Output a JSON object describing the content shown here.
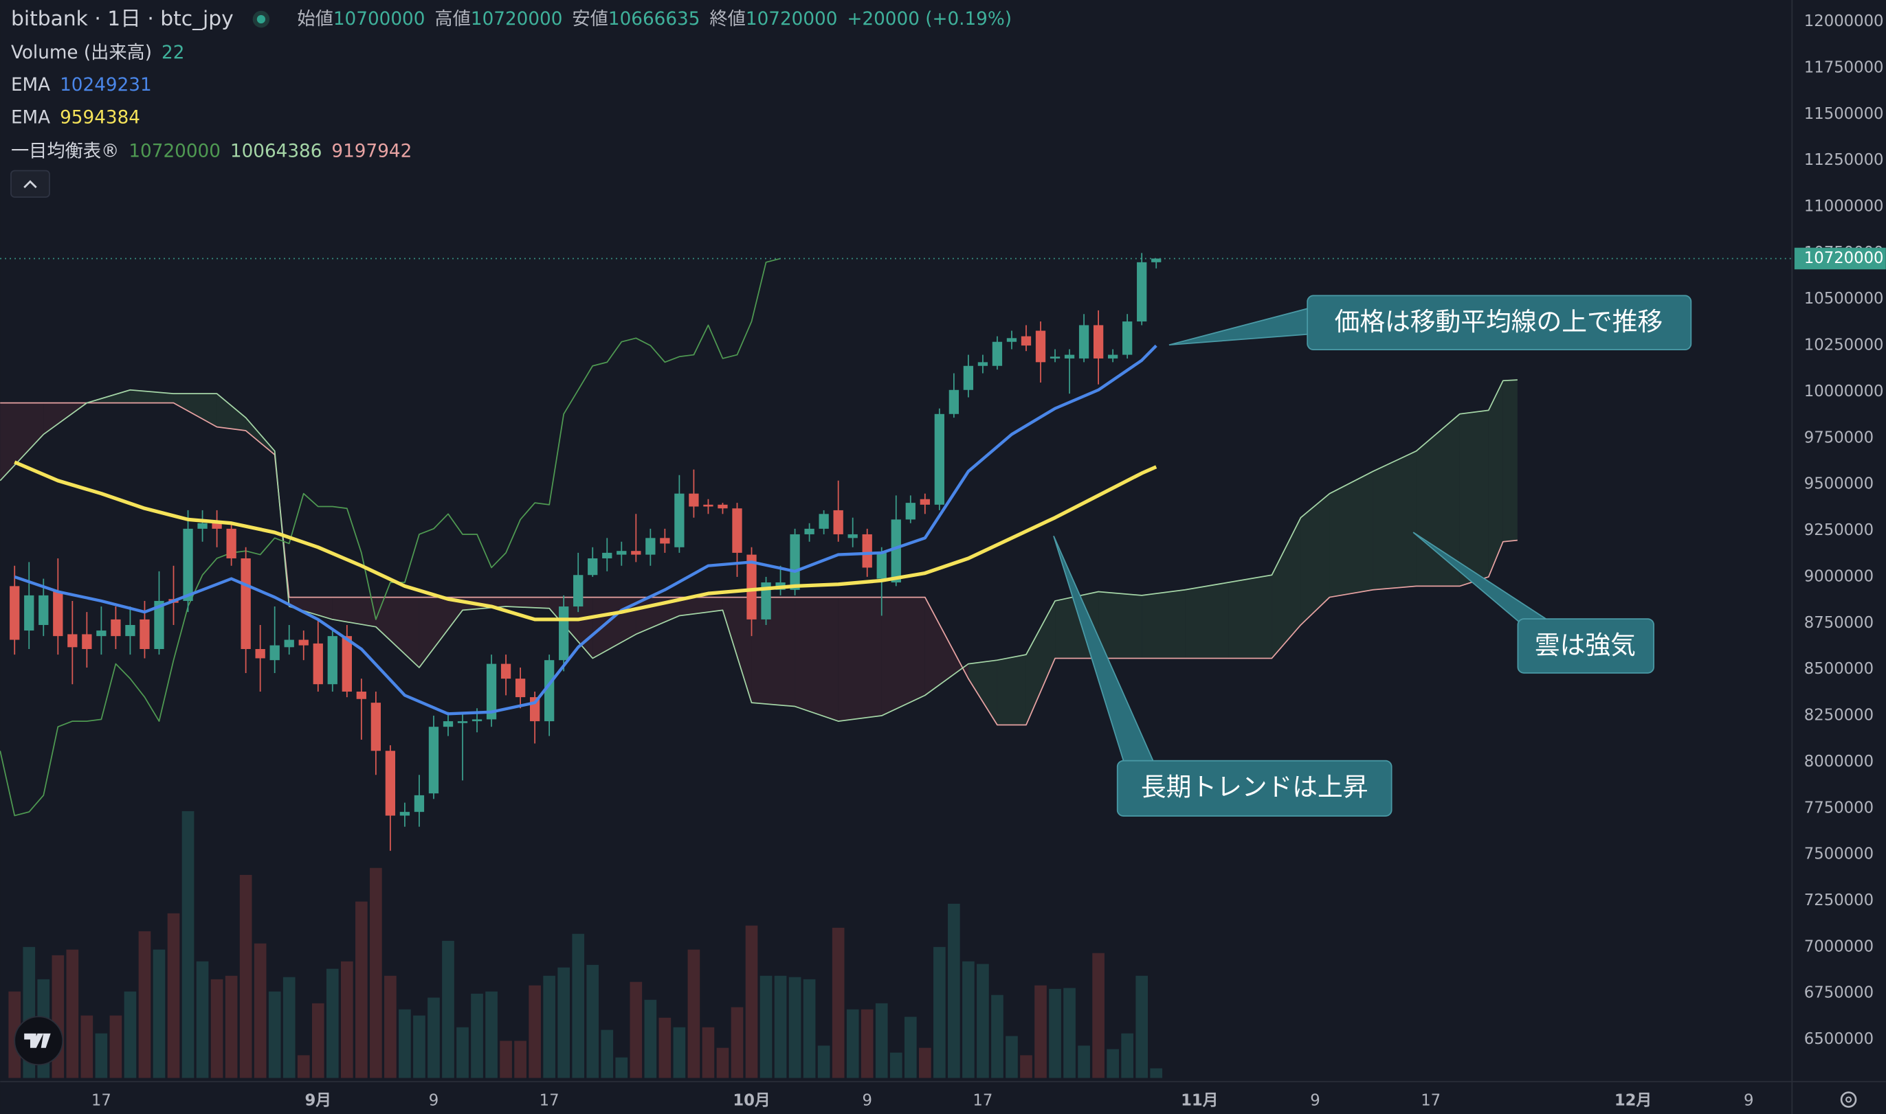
{
  "header": {
    "symbol": "bitbank · 1日 · btc_jpy",
    "open_label": "始値",
    "high_label": "高値",
    "low_label": "安値",
    "close_label": "終値",
    "change": "+20000 (+0.19%)"
  },
  "chart_data": {
    "type": "candlestick",
    "x": [
      "08-11",
      "08-12",
      "08-13",
      "08-14",
      "08-15",
      "08-16",
      "08-17",
      "08-18",
      "08-19",
      "08-20",
      "08-21",
      "08-22",
      "08-23",
      "08-24",
      "08-25",
      "08-26",
      "08-27",
      "08-28",
      "08-29",
      "08-30",
      "08-31",
      "09-01",
      "09-02",
      "09-03",
      "09-04",
      "09-05",
      "09-06",
      "09-07",
      "09-08",
      "09-09",
      "09-10",
      "09-11",
      "09-12",
      "09-13",
      "09-14",
      "09-15",
      "09-16",
      "09-17",
      "09-18",
      "09-19",
      "09-20",
      "09-21",
      "09-22",
      "09-23",
      "09-24",
      "09-25",
      "09-26",
      "09-27",
      "09-28",
      "09-29",
      "09-30",
      "10-01",
      "10-02",
      "10-03",
      "10-04",
      "10-05",
      "10-06",
      "10-07",
      "10-08",
      "10-09",
      "10-10",
      "10-11",
      "10-12",
      "10-13",
      "10-14",
      "10-15",
      "10-16",
      "10-17",
      "10-18",
      "10-19",
      "10-20",
      "10-21",
      "10-22",
      "10-23",
      "10-24",
      "10-25",
      "10-26",
      "10-27",
      "10-28",
      "10-29"
    ],
    "open": [
      8950000,
      8710000,
      8740000,
      8920000,
      8690000,
      8690000,
      8680000,
      8770000,
      8680000,
      8770000,
      8610000,
      8880000,
      8870000,
      9260000,
      9290000,
      9260000,
      9100000,
      8610000,
      8550000,
      8620000,
      8660000,
      8640000,
      8420000,
      8680000,
      8380000,
      8320000,
      8060000,
      7710000,
      7730000,
      7830000,
      8190000,
      8210000,
      8220000,
      8230000,
      8530000,
      8450000,
      8350000,
      8220000,
      8550000,
      8840000,
      9010000,
      9100000,
      9120000,
      9140000,
      9120000,
      9210000,
      9160000,
      9450000,
      9390000,
      9390000,
      9370000,
      9120000,
      8770000,
      8930000,
      8930000,
      9230000,
      9260000,
      9360000,
      9210000,
      9230000,
      8990000,
      8970000,
      9310000,
      9420000,
      9390000,
      9880000,
      10010000,
      10140000,
      10140000,
      10270000,
      10300000,
      10330000,
      10180000,
      10180000,
      10180000,
      10360000,
      10180000,
      10200000,
      10380000,
      10700000
    ],
    "high": [
      9060000,
      9080000,
      8990000,
      9100000,
      8870000,
      8810000,
      8840000,
      8840000,
      8840000,
      8870000,
      9030000,
      9060000,
      9360000,
      9360000,
      9360000,
      9290000,
      9160000,
      8740000,
      8840000,
      8740000,
      8710000,
      8770000,
      8710000,
      8740000,
      8450000,
      8380000,
      8090000,
      7780000,
      7930000,
      8250000,
      8270000,
      8270000,
      8290000,
      8580000,
      8580000,
      8510000,
      8380000,
      8580000,
      8900000,
      9130000,
      9160000,
      9210000,
      9190000,
      9340000,
      9260000,
      9260000,
      9550000,
      9580000,
      9420000,
      9400000,
      9400000,
      9160000,
      9000000,
      9060000,
      9260000,
      9290000,
      9360000,
      9520000,
      9320000,
      9260000,
      9160000,
      9440000,
      9440000,
      9450000,
      9910000,
      10100000,
      10200000,
      10200000,
      10300000,
      10330000,
      10360000,
      10380000,
      10230000,
      10230000,
      10420000,
      10440000,
      10230000,
      10420000,
      10750000,
      10720000
    ],
    "low": [
      8580000,
      8610000,
      8680000,
      8580000,
      8420000,
      8510000,
      8580000,
      8610000,
      8580000,
      8560000,
      8580000,
      8740000,
      8810000,
      9190000,
      9160000,
      9060000,
      8480000,
      8380000,
      8480000,
      8580000,
      8550000,
      8380000,
      8380000,
      8350000,
      8120000,
      7930000,
      7520000,
      7650000,
      7650000,
      7800000,
      8140000,
      7900000,
      8160000,
      8190000,
      8360000,
      8290000,
      8100000,
      8140000,
      8490000,
      8810000,
      9000000,
      9030000,
      9060000,
      9080000,
      9060000,
      9130000,
      9130000,
      9320000,
      9340000,
      9340000,
      9000000,
      8680000,
      8740000,
      8900000,
      8900000,
      9190000,
      9230000,
      9190000,
      9160000,
      9000000,
      8790000,
      8950000,
      9290000,
      9340000,
      9360000,
      9860000,
      9970000,
      10100000,
      10120000,
      10230000,
      10220000,
      10050000,
      10160000,
      9990000,
      10160000,
      10040000,
      10160000,
      10180000,
      10360000,
      10666635
    ],
    "close": [
      8660000,
      8900000,
      8900000,
      8680000,
      8620000,
      8610000,
      8710000,
      8680000,
      8740000,
      8610000,
      8870000,
      8860000,
      9260000,
      9290000,
      9260000,
      9100000,
      8610000,
      8560000,
      8630000,
      8660000,
      8630000,
      8420000,
      8680000,
      8380000,
      8340000,
      8060000,
      7710000,
      7730000,
      7820000,
      8190000,
      8220000,
      8220000,
      8230000,
      8530000,
      8450000,
      8350000,
      8220000,
      8550000,
      8840000,
      9010000,
      9100000,
      9130000,
      9140000,
      9120000,
      9210000,
      9180000,
      9450000,
      9380000,
      9380000,
      9370000,
      9130000,
      8770000,
      8970000,
      8970000,
      9230000,
      9260000,
      9340000,
      9230000,
      9230000,
      9050000,
      9130000,
      9310000,
      9400000,
      9390000,
      9880000,
      10010000,
      10140000,
      10160000,
      10270000,
      10290000,
      10250000,
      10160000,
      10190000,
      10200000,
      10360000,
      10180000,
      10200000,
      10380000,
      10700000,
      10720000
    ],
    "up_color": "#3a9e8c",
    "down_color": "#dc5a53",
    "volume": {
      "name": "Volume (出来高)",
      "up_color": "#1d3b40",
      "down_color": "#45272d",
      "values": [
        198,
        300,
        226,
        281,
        294,
        143,
        102,
        143,
        198,
        336,
        294,
        377,
        611,
        267,
        226,
        234,
        465,
        308,
        198,
        231,
        52,
        171,
        250,
        267,
        404,
        481,
        234,
        157,
        143,
        184,
        314,
        116,
        193,
        198,
        85,
        85,
        212,
        234,
        253,
        330,
        259,
        110,
        47,
        220,
        179,
        138,
        116,
        294,
        116,
        69,
        162,
        349,
        234,
        234,
        231,
        226,
        74,
        344,
        157,
        157,
        171,
        58,
        140,
        69,
        300,
        399,
        267,
        261,
        190,
        96,
        52,
        212,
        204,
        206,
        74,
        286,
        66,
        102,
        234,
        22
      ]
    },
    "overlays": [
      {
        "type": "line",
        "name": "EMA",
        "color": "#4a86e8",
        "x": [
          "08-11",
          "08-14",
          "08-17",
          "08-20",
          "08-23",
          "08-26",
          "08-29",
          "09-01",
          "09-04",
          "09-07",
          "09-10",
          "09-13",
          "09-16",
          "09-19",
          "09-22",
          "09-25",
          "09-28",
          "10-01",
          "10-04",
          "10-07",
          "10-10",
          "10-13",
          "10-16",
          "10-19",
          "10-22",
          "10-25",
          "10-28",
          "10-29"
        ],
        "values": [
          9000000,
          8920000,
          8870000,
          8810000,
          8900000,
          8990000,
          8890000,
          8770000,
          8610000,
          8360000,
          8260000,
          8270000,
          8320000,
          8620000,
          8820000,
          8930000,
          9060000,
          9080000,
          9030000,
          9120000,
          9130000,
          9210000,
          9570000,
          9770000,
          9910000,
          10010000,
          10170000,
          10249231
        ]
      },
      {
        "type": "line",
        "name": "EMA",
        "color": "#f5e35a",
        "x": [
          "08-11",
          "08-14",
          "08-17",
          "08-20",
          "08-23",
          "08-26",
          "08-29",
          "09-01",
          "09-04",
          "09-07",
          "09-10",
          "09-13",
          "09-16",
          "09-19",
          "09-22",
          "09-25",
          "09-28",
          "10-01",
          "10-04",
          "10-07",
          "10-10",
          "10-13",
          "10-16",
          "10-19",
          "10-22",
          "10-25",
          "10-28",
          "10-29"
        ],
        "values": [
          9620000,
          9520000,
          9450000,
          9370000,
          9310000,
          9290000,
          9240000,
          9160000,
          9060000,
          8950000,
          8880000,
          8840000,
          8770000,
          8770000,
          8810000,
          8860000,
          8910000,
          8930000,
          8950000,
          8960000,
          8980000,
          9020000,
          9100000,
          9210000,
          9320000,
          9440000,
          9560000,
          9594384
        ]
      }
    ],
    "ichimoku": {
      "name": "一目均衡表®",
      "cloud_up_color": "#1f2e2d",
      "cloud_down_color": "#2b1f2b",
      "lagging": {
        "color": "#4f9a52",
        "x": [
          "08-10",
          "08-11",
          "08-12",
          "08-13",
          "08-14",
          "08-15",
          "08-16",
          "08-17",
          "08-18",
          "08-19",
          "08-20",
          "08-21",
          "08-22",
          "08-23",
          "08-24",
          "08-25",
          "08-26",
          "08-27",
          "08-28",
          "08-29",
          "08-30",
          "08-31",
          "09-01",
          "09-02",
          "09-03",
          "09-04",
          "09-05",
          "09-06",
          "09-07",
          "09-08",
          "09-09",
          "09-10",
          "09-11",
          "09-12",
          "09-13",
          "09-14",
          "09-15",
          "09-16",
          "09-17",
          "09-18",
          "09-19",
          "09-20",
          "09-21",
          "09-22",
          "09-23",
          "09-24",
          "09-25",
          "09-26",
          "09-27",
          "09-28",
          "09-29",
          "09-30",
          "10-01",
          "10-02",
          "10-03"
        ],
        "values": [
          8060000,
          7710000,
          7730000,
          7820000,
          8190000,
          8220000,
          8220000,
          8230000,
          8530000,
          8450000,
          8350000,
          8220000,
          8550000,
          8840000,
          9010000,
          9100000,
          9130000,
          9140000,
          9120000,
          9210000,
          9180000,
          9450000,
          9380000,
          9380000,
          9370000,
          9130000,
          8770000,
          8970000,
          8970000,
          9230000,
          9260000,
          9340000,
          9230000,
          9230000,
          9050000,
          9130000,
          9310000,
          9400000,
          9390000,
          9880000,
          10010000,
          10140000,
          10160000,
          10270000,
          10290000,
          10250000,
          10160000,
          10190000,
          10200000,
          10360000,
          10180000,
          10200000,
          10380000,
          10700000,
          10720000
        ]
      },
      "x": [
        "08-10",
        "08-13",
        "08-16",
        "08-19",
        "08-22",
        "08-25",
        "08-27",
        "08-29",
        "08-30",
        "09-02",
        "09-05",
        "09-08",
        "09-11",
        "09-14",
        "09-17",
        "09-20",
        "09-23",
        "09-26",
        "09-29",
        "10-01",
        "10-04",
        "10-07",
        "10-10",
        "10-13",
        "10-16",
        "10-18",
        "10-20",
        "10-22",
        "10-25",
        "10-28",
        "10-31",
        "11-03",
        "11-06",
        "11-08",
        "11-10",
        "11-13",
        "11-16",
        "11-19",
        "11-21",
        "11-22",
        "11-23"
      ],
      "span_a": {
        "color": "#a5d6a7",
        "values": [
          9520000,
          9770000,
          9940000,
          10010000,
          9990000,
          9990000,
          9860000,
          9680000,
          8840000,
          8770000,
          8730000,
          8510000,
          8820000,
          8840000,
          8830000,
          8560000,
          8690000,
          8790000,
          8820000,
          8320000,
          8300000,
          8220000,
          8250000,
          8360000,
          8530000,
          8550000,
          8580000,
          8870000,
          8920000,
          8900000,
          8930000,
          8970000,
          9010000,
          9320000,
          9450000,
          9570000,
          9680000,
          9880000,
          9900000,
          10060000,
          10064386
        ]
      },
      "span_b": {
        "color": "#e8a3a3",
        "values": [
          9940000,
          9940000,
          9940000,
          9940000,
          9940000,
          9810000,
          9790000,
          9660000,
          8890000,
          8890000,
          8890000,
          8890000,
          8890000,
          8890000,
          8890000,
          8890000,
          8890000,
          8890000,
          8890000,
          8890000,
          8890000,
          8890000,
          8890000,
          8890000,
          8450000,
          8200000,
          8200000,
          8560000,
          8560000,
          8560000,
          8560000,
          8560000,
          8560000,
          8740000,
          8890000,
          8930000,
          8950000,
          8950000,
          9000000,
          9190000,
          9197942
        ]
      }
    },
    "xlim": [
      "08-10",
      "12-12"
    ],
    "xticks": [
      {
        "value": "08-17",
        "label": "17"
      },
      {
        "value": "09-01",
        "label": "9月"
      },
      {
        "value": "09-09",
        "label": "9"
      },
      {
        "value": "09-17",
        "label": "17"
      },
      {
        "value": "10-01",
        "label": "10月"
      },
      {
        "value": "10-09",
        "label": "9"
      },
      {
        "value": "10-17",
        "label": "17"
      },
      {
        "value": "11-01",
        "label": "11月"
      },
      {
        "value": "11-09",
        "label": "9"
      },
      {
        "value": "11-17",
        "label": "17"
      },
      {
        "value": "12-01",
        "label": "12月"
      },
      {
        "value": "12-09",
        "label": "9"
      }
    ],
    "ylim": [
      6273000,
      12117000
    ],
    "yticks": [
      6500000,
      6750000,
      7000000,
      7250000,
      7500000,
      7750000,
      8000000,
      8250000,
      8500000,
      8750000,
      9000000,
      9250000,
      9500000,
      9750000,
      10000000,
      10250000,
      10500000,
      10750000,
      11000000,
      11250000,
      11500000,
      11750000,
      12000000
    ],
    "grid": false,
    "annotations": [
      {
        "text": "価格は移動平均線の上で推移"
      },
      {
        "text": "雲は強気"
      },
      {
        "text": "長期トレンドは上昇"
      }
    ]
  }
}
